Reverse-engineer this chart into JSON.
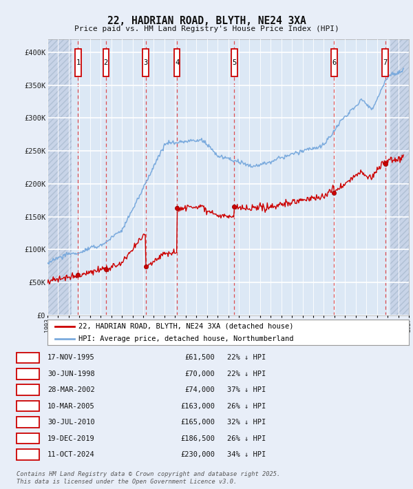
{
  "title": "22, HADRIAN ROAD, BLYTH, NE24 3XA",
  "subtitle": "Price paid vs. HM Land Registry's House Price Index (HPI)",
  "legend_label_red": "22, HADRIAN ROAD, BLYTH, NE24 3XA (detached house)",
  "legend_label_blue": "HPI: Average price, detached house, Northumberland",
  "footnote": "Contains HM Land Registry data © Crown copyright and database right 2025.\nThis data is licensed under the Open Government Licence v3.0.",
  "transactions": [
    {
      "num": 1,
      "date": "17-NOV-1995",
      "date_x": 1995.878,
      "price": 61500,
      "hpi_pct": "22% ↓ HPI"
    },
    {
      "num": 2,
      "date": "30-JUN-1998",
      "date_x": 1998.494,
      "price": 70000,
      "hpi_pct": "22% ↓ HPI"
    },
    {
      "num": 3,
      "date": "28-MAR-2002",
      "date_x": 2002.239,
      "price": 74000,
      "hpi_pct": "37% ↓ HPI"
    },
    {
      "num": 4,
      "date": "10-MAR-2005",
      "date_x": 2005.189,
      "price": 163000,
      "hpi_pct": "26% ↓ HPI"
    },
    {
      "num": 5,
      "date": "30-JUL-2010",
      "date_x": 2010.575,
      "price": 165000,
      "hpi_pct": "32% ↓ HPI"
    },
    {
      "num": 6,
      "date": "19-DEC-2019",
      "date_x": 2019.963,
      "price": 186500,
      "hpi_pct": "26% ↓ HPI"
    },
    {
      "num": 7,
      "date": "11-OCT-2024",
      "date_x": 2024.775,
      "price": 230000,
      "hpi_pct": "34% ↓ HPI"
    }
  ],
  "xmin": 1993.0,
  "xmax": 2027.0,
  "ymin": 0,
  "ymax": 420000,
  "yticks": [
    0,
    50000,
    100000,
    150000,
    200000,
    250000,
    300000,
    350000,
    400000
  ],
  "ytick_labels": [
    "£0",
    "£50K",
    "£100K",
    "£150K",
    "£200K",
    "£250K",
    "£300K",
    "£350K",
    "£400K"
  ],
  "bg_color": "#e8eef8",
  "plot_bg_color": "#dce8f5",
  "grid_color": "#ffffff",
  "red_line_color": "#cc0000",
  "blue_line_color": "#7aaadd",
  "dashed_line_color": "#dd3333",
  "number_box_color": "#cc0000",
  "hatch_left_end": 1995.25,
  "hatch_right_start": 2025.25
}
